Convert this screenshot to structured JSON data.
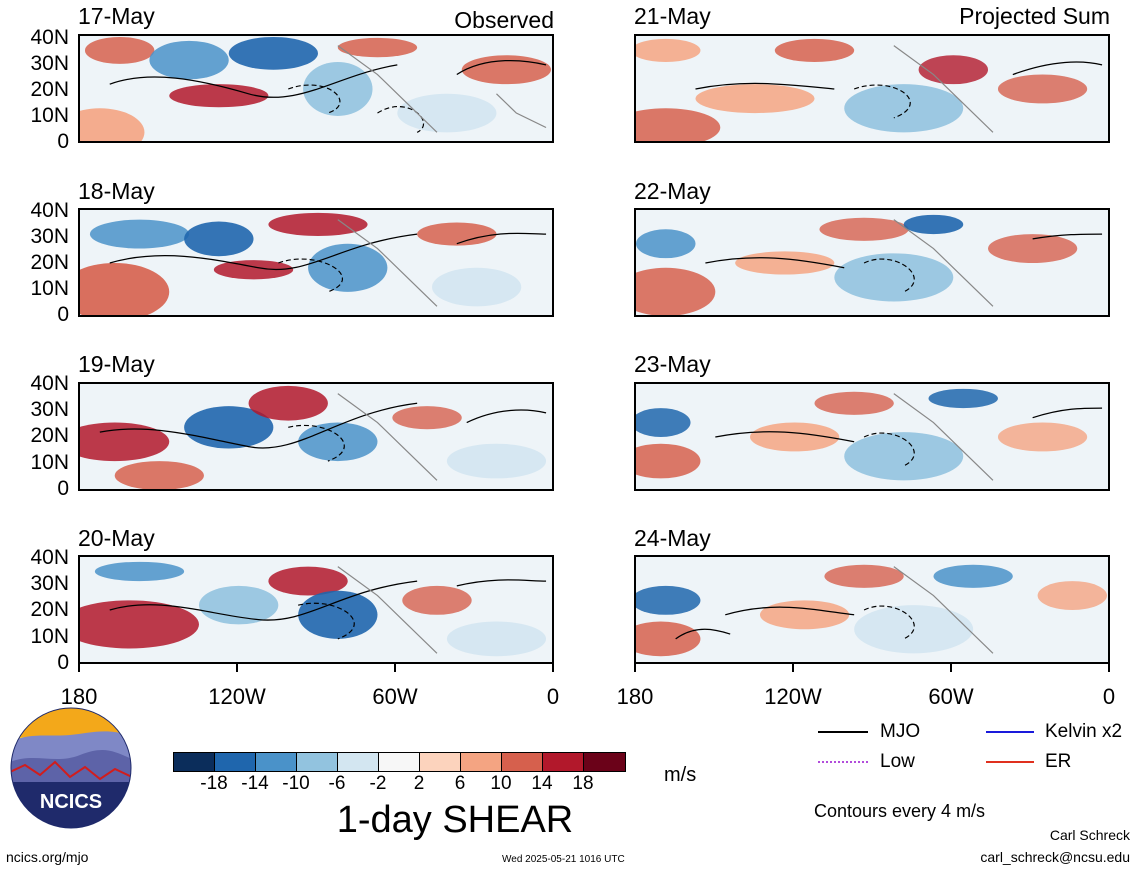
{
  "header": {
    "observed": "Observed",
    "projected": "Projected Sum"
  },
  "panels": [
    {
      "date": "17-May",
      "column": "observed"
    },
    {
      "date": "18-May",
      "column": "observed"
    },
    {
      "date": "19-May",
      "column": "observed"
    },
    {
      "date": "20-May",
      "column": "observed"
    },
    {
      "date": "21-May",
      "column": "projected"
    },
    {
      "date": "22-May",
      "column": "projected"
    },
    {
      "date": "23-May",
      "column": "projected"
    },
    {
      "date": "24-May",
      "column": "projected"
    }
  ],
  "y_ticks": [
    "40N",
    "30N",
    "20N",
    "10N",
    "0"
  ],
  "x_ticks": [
    "180",
    "120W",
    "60W",
    "0"
  ],
  "colorbar": {
    "colors": [
      "#0b2d5b",
      "#1f66ad",
      "#4a92c9",
      "#92c3df",
      "#d3e6f1",
      "#f7f7f7",
      "#fcd3bd",
      "#f4a482",
      "#d6604d",
      "#b2182b",
      "#6b0219"
    ],
    "labels": [
      "-18",
      "-14",
      "-10",
      "-6",
      "-2",
      "2",
      "6",
      "10",
      "14",
      "18"
    ],
    "unit": "m/s"
  },
  "title": "1-day SHEAR",
  "legend": {
    "items": [
      {
        "label": "MJO",
        "color": "#000000"
      },
      {
        "label": "Kelvin x2",
        "color": "#1a1adb"
      },
      {
        "label": "Low",
        "color": "#b24ddb"
      },
      {
        "label": "ER",
        "color": "#e0301e"
      }
    ],
    "note": "Contours every 4 m/s"
  },
  "footer": {
    "logo_text": "NCICS",
    "url": "ncics.org/mjo",
    "timestamp": "Wed 2025-05-21 1016 UTC",
    "author": "Carl Schreck",
    "email": "carl_schreck@ncsu.edu"
  }
}
